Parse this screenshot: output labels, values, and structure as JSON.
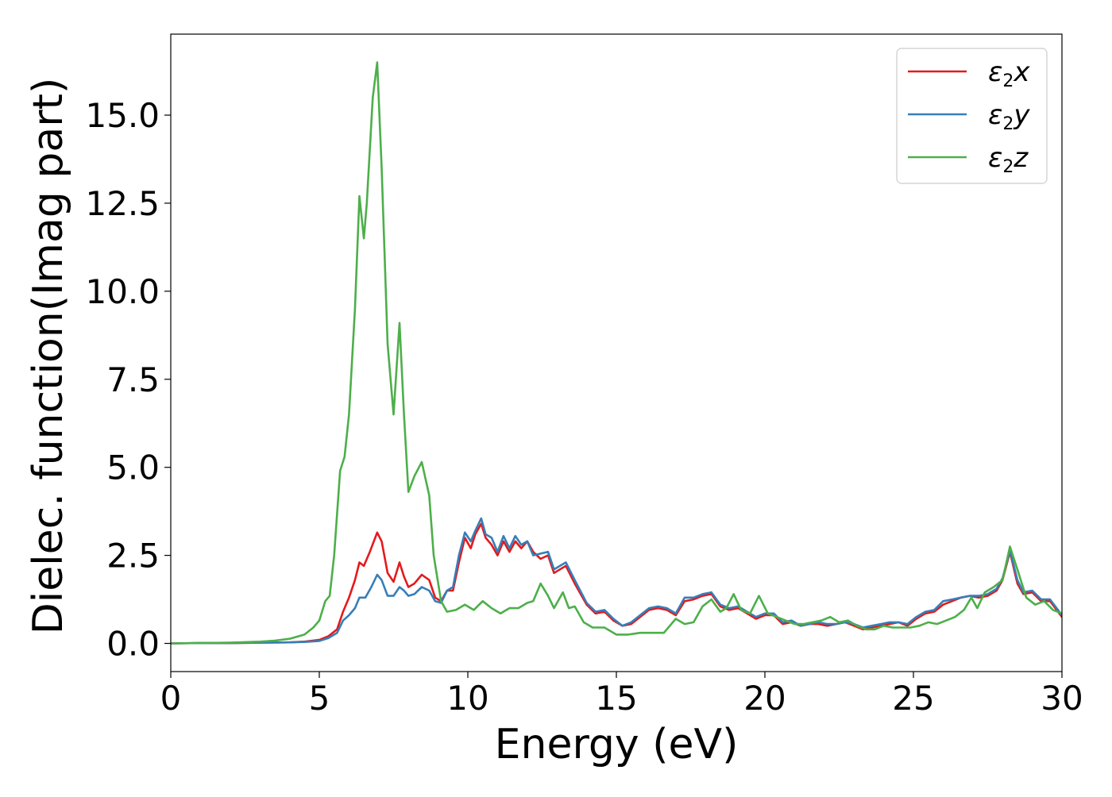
{
  "chart_data": {
    "type": "line",
    "title": "",
    "xlabel": "Energy (eV)",
    "ylabel": "Dielec. function(Imag part)",
    "xlim": [
      0,
      30
    ],
    "ylim": [
      -0.8,
      17.3
    ],
    "xticks": [
      0,
      5,
      10,
      15,
      20,
      25,
      30
    ],
    "xtick_labels": [
      "0",
      "5",
      "10",
      "15",
      "20",
      "25",
      "30"
    ],
    "yticks": [
      0.0,
      2.5,
      5.0,
      7.5,
      10.0,
      12.5,
      15.0
    ],
    "ytick_labels": [
      "0.0",
      "2.5",
      "5.0",
      "7.5",
      "10.0",
      "12.5",
      "15.0"
    ],
    "grid": false,
    "legend_position": "top-right",
    "series": [
      {
        "name": "ε2x",
        "legend_base": "ε",
        "legend_sub": "2",
        "legend_var": "x",
        "color": "#e41a1c",
        "x": [
          0,
          1,
          2,
          3,
          4,
          4.5,
          5,
          5.3,
          5.6,
          5.8,
          6.0,
          6.2,
          6.35,
          6.5,
          6.7,
          6.95,
          7.1,
          7.3,
          7.5,
          7.7,
          7.85,
          8.0,
          8.2,
          8.45,
          8.7,
          8.9,
          9.1,
          9.3,
          9.5,
          9.7,
          9.9,
          10.1,
          10.25,
          10.45,
          10.6,
          10.8,
          11.0,
          11.2,
          11.4,
          11.6,
          11.8,
          12.0,
          12.2,
          12.45,
          12.7,
          12.9,
          13.1,
          13.3,
          13.6,
          14.0,
          14.3,
          14.6,
          14.9,
          15.2,
          15.5,
          15.8,
          16.1,
          16.4,
          16.7,
          17.0,
          17.3,
          17.6,
          17.9,
          18.2,
          18.5,
          18.8,
          19.1,
          19.4,
          19.7,
          20.0,
          20.3,
          20.6,
          20.9,
          21.2,
          21.5,
          21.8,
          22.1,
          22.4,
          22.7,
          23.0,
          23.3,
          23.6,
          23.9,
          24.2,
          24.5,
          24.8,
          25.1,
          25.4,
          25.7,
          26.0,
          26.3,
          26.6,
          26.9,
          27.2,
          27.5,
          27.8,
          28.0,
          28.25,
          28.5,
          28.7,
          29.0,
          29.3,
          29.6,
          30.0
        ],
        "y": [
          0.0,
          0.01,
          0.01,
          0.02,
          0.03,
          0.05,
          0.1,
          0.2,
          0.4,
          0.9,
          1.3,
          1.8,
          2.3,
          2.2,
          2.6,
          3.15,
          2.9,
          2.0,
          1.75,
          2.3,
          1.9,
          1.6,
          1.7,
          1.95,
          1.8,
          1.3,
          1.2,
          1.5,
          1.5,
          2.3,
          3.0,
          2.7,
          3.1,
          3.4,
          3.0,
          2.8,
          2.5,
          2.9,
          2.6,
          2.9,
          2.7,
          2.9,
          2.6,
          2.4,
          2.5,
          2.0,
          2.1,
          2.2,
          1.7,
          1.1,
          0.85,
          0.9,
          0.65,
          0.5,
          0.55,
          0.75,
          0.95,
          1.0,
          0.95,
          0.8,
          1.2,
          1.25,
          1.35,
          1.4,
          1.05,
          0.95,
          1.0,
          0.85,
          0.7,
          0.8,
          0.8,
          0.55,
          0.6,
          0.5,
          0.55,
          0.55,
          0.5,
          0.55,
          0.6,
          0.5,
          0.4,
          0.45,
          0.5,
          0.55,
          0.6,
          0.5,
          0.7,
          0.85,
          0.9,
          1.1,
          1.2,
          1.3,
          1.35,
          1.3,
          1.35,
          1.5,
          1.8,
          2.6,
          1.7,
          1.4,
          1.45,
          1.2,
          1.2,
          0.75
        ]
      },
      {
        "name": "ε2y",
        "legend_base": "ε",
        "legend_sub": "2",
        "legend_var": "y",
        "color": "#377eb8",
        "x": [
          0,
          1,
          2,
          3,
          4,
          4.5,
          5,
          5.3,
          5.6,
          5.8,
          6.0,
          6.2,
          6.35,
          6.55,
          6.75,
          6.95,
          7.1,
          7.3,
          7.5,
          7.7,
          7.85,
          8.0,
          8.2,
          8.45,
          8.7,
          8.9,
          9.1,
          9.3,
          9.5,
          9.7,
          9.9,
          10.1,
          10.25,
          10.45,
          10.6,
          10.8,
          11.0,
          11.2,
          11.4,
          11.6,
          11.8,
          12.0,
          12.2,
          12.45,
          12.7,
          12.9,
          13.1,
          13.3,
          13.6,
          14.0,
          14.3,
          14.6,
          14.9,
          15.2,
          15.5,
          15.8,
          16.1,
          16.4,
          16.7,
          17.0,
          17.3,
          17.6,
          17.9,
          18.2,
          18.5,
          18.8,
          19.1,
          19.4,
          19.7,
          20.0,
          20.3,
          20.6,
          20.9,
          21.2,
          21.5,
          21.8,
          22.1,
          22.4,
          22.7,
          23.0,
          23.3,
          23.6,
          23.9,
          24.2,
          24.5,
          24.8,
          25.1,
          25.4,
          25.7,
          26.0,
          26.3,
          26.6,
          26.9,
          27.2,
          27.5,
          27.8,
          28.0,
          28.25,
          28.5,
          28.7,
          29.0,
          29.3,
          29.6,
          30.0
        ],
        "y": [
          0.0,
          0.01,
          0.01,
          0.02,
          0.03,
          0.04,
          0.07,
          0.15,
          0.3,
          0.65,
          0.8,
          1.0,
          1.3,
          1.3,
          1.6,
          1.95,
          1.8,
          1.35,
          1.35,
          1.6,
          1.5,
          1.35,
          1.4,
          1.6,
          1.5,
          1.2,
          1.15,
          1.5,
          1.6,
          2.5,
          3.15,
          2.9,
          3.2,
          3.55,
          3.1,
          3.0,
          2.6,
          3.05,
          2.7,
          3.05,
          2.8,
          2.9,
          2.5,
          2.55,
          2.6,
          2.1,
          2.2,
          2.3,
          1.8,
          1.15,
          0.9,
          0.95,
          0.7,
          0.5,
          0.6,
          0.8,
          1.0,
          1.05,
          1.0,
          0.85,
          1.3,
          1.3,
          1.4,
          1.45,
          1.1,
          1.0,
          1.05,
          0.9,
          0.75,
          0.85,
          0.85,
          0.6,
          0.65,
          0.5,
          0.55,
          0.6,
          0.55,
          0.55,
          0.6,
          0.55,
          0.45,
          0.5,
          0.55,
          0.6,
          0.6,
          0.55,
          0.75,
          0.9,
          0.95,
          1.2,
          1.25,
          1.3,
          1.35,
          1.35,
          1.4,
          1.55,
          1.85,
          2.65,
          1.8,
          1.45,
          1.5,
          1.25,
          1.25,
          0.8
        ]
      },
      {
        "name": "ε2z",
        "legend_base": "ε",
        "legend_sub": "2",
        "legend_var": "z",
        "color": "#4daf4a",
        "x": [
          0,
          1,
          2,
          3,
          3.5,
          4,
          4.5,
          4.8,
          5.0,
          5.2,
          5.35,
          5.5,
          5.7,
          5.85,
          6.0,
          6.2,
          6.35,
          6.5,
          6.6,
          6.8,
          6.95,
          7.1,
          7.3,
          7.5,
          7.7,
          7.85,
          8.0,
          8.2,
          8.45,
          8.7,
          8.85,
          9.1,
          9.3,
          9.6,
          9.9,
          10.2,
          10.5,
          10.8,
          11.1,
          11.4,
          11.7,
          12.0,
          12.2,
          12.45,
          12.7,
          12.9,
          13.2,
          13.4,
          13.6,
          13.9,
          14.2,
          14.6,
          15.0,
          15.4,
          15.8,
          16.2,
          16.6,
          17.0,
          17.3,
          17.6,
          17.9,
          18.2,
          18.5,
          18.7,
          18.95,
          19.2,
          19.5,
          19.8,
          20.1,
          20.4,
          20.7,
          21.0,
          21.3,
          21.6,
          21.9,
          22.2,
          22.5,
          22.8,
          23.1,
          23.4,
          23.7,
          24.0,
          24.3,
          24.6,
          24.9,
          25.2,
          25.5,
          25.8,
          26.1,
          26.4,
          26.7,
          26.95,
          27.15,
          27.4,
          27.7,
          28.0,
          28.25,
          28.5,
          28.8,
          29.1,
          29.4,
          29.7,
          30.0
        ],
        "y": [
          0.0,
          0.01,
          0.02,
          0.05,
          0.08,
          0.13,
          0.25,
          0.45,
          0.65,
          1.2,
          1.35,
          2.5,
          4.9,
          5.3,
          6.5,
          9.5,
          12.7,
          11.5,
          12.5,
          15.5,
          16.5,
          13.5,
          8.5,
          6.5,
          9.1,
          6.5,
          4.3,
          4.75,
          5.15,
          4.2,
          2.5,
          1.2,
          0.9,
          0.95,
          1.1,
          0.95,
          1.2,
          1.0,
          0.85,
          1.0,
          1.0,
          1.15,
          1.2,
          1.7,
          1.35,
          1.0,
          1.45,
          1.0,
          1.05,
          0.6,
          0.45,
          0.45,
          0.25,
          0.25,
          0.3,
          0.3,
          0.3,
          0.7,
          0.55,
          0.6,
          1.05,
          1.25,
          0.9,
          1.0,
          1.4,
          0.95,
          0.85,
          1.35,
          0.85,
          0.75,
          0.65,
          0.55,
          0.55,
          0.6,
          0.65,
          0.75,
          0.6,
          0.65,
          0.5,
          0.4,
          0.4,
          0.5,
          0.45,
          0.45,
          0.45,
          0.5,
          0.6,
          0.55,
          0.65,
          0.75,
          0.95,
          1.3,
          1.0,
          1.45,
          1.6,
          1.8,
          2.75,
          2.1,
          1.3,
          1.1,
          1.2,
          0.95,
          0.85
        ]
      }
    ]
  }
}
